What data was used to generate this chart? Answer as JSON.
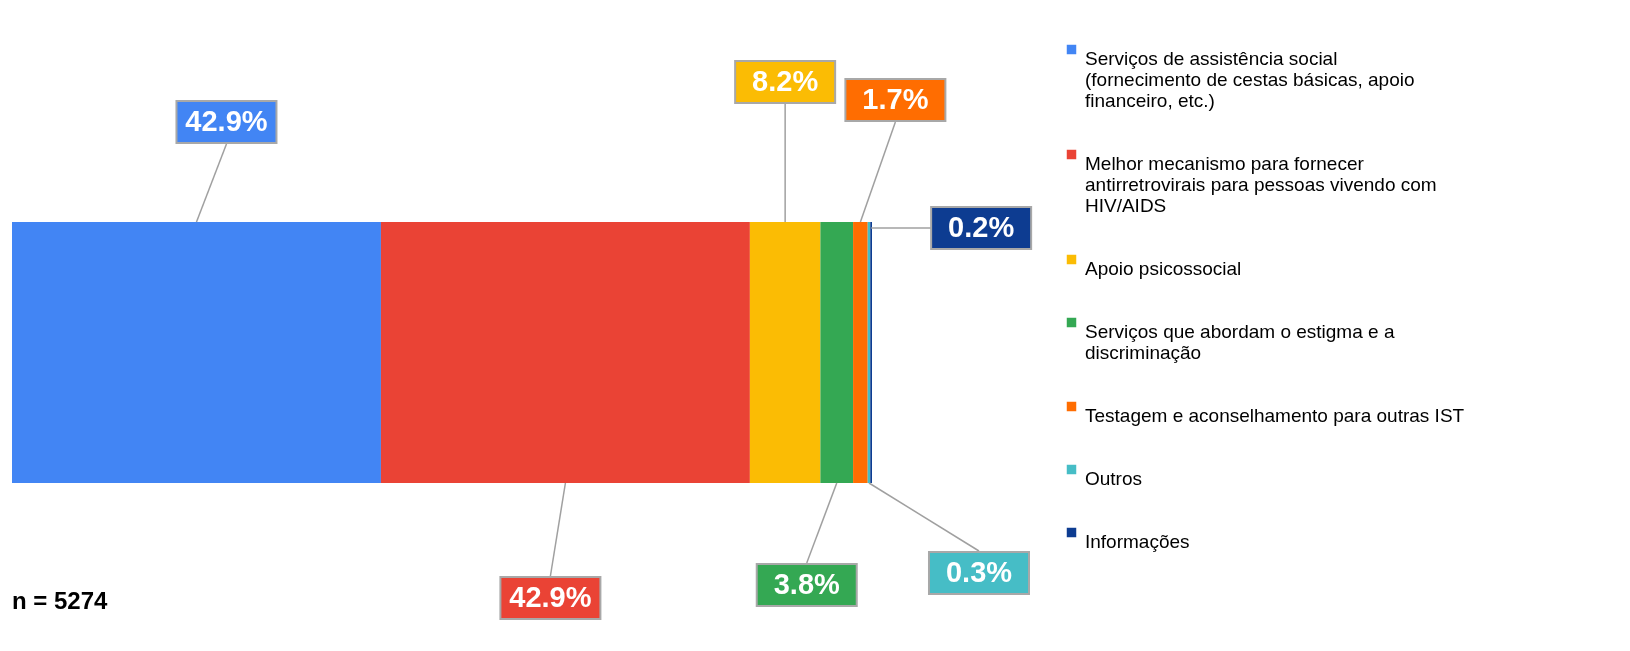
{
  "chart_data": {
    "type": "bar",
    "orientation": "horizontal",
    "stacked": true,
    "categories": [
      null
    ],
    "legend": "right",
    "series": [
      {
        "name": "Serviços de assistência social (fornecimento de cestas básicas, apoio financeiro, etc.)",
        "color": "#4285f4",
        "values": [
          42.9
        ],
        "value_labels": [
          "42.9%"
        ]
      },
      {
        "name": "Melhor mecanismo para fornecer antirretrovirais para pessoas vivendo com HIV/AIDS",
        "color": "#ea4335",
        "values": [
          42.9
        ],
        "value_labels": [
          "42.9%"
        ]
      },
      {
        "name": "Apoio psicossocial",
        "color": "#fbbc04",
        "values": [
          8.2
        ],
        "value_labels": [
          "8.2%"
        ]
      },
      {
        "name": "Serviços que abordam o estigma e a discriminação",
        "color": "#34a853",
        "values": [
          3.8
        ],
        "value_labels": [
          "3.8%"
        ]
      },
      {
        "name": "Testagem e aconselhamento para outras IST",
        "color": "#ff6d01",
        "values": [
          1.7
        ],
        "value_labels": [
          "1.7%"
        ]
      },
      {
        "name": "Outros",
        "color": "#46bdc6",
        "values": [
          0.3
        ],
        "value_labels": [
          "0.3%"
        ]
      },
      {
        "name": "Informações",
        "color": "#0d3c91",
        "values": [
          0.2
        ],
        "value_labels": [
          "0.2%"
        ]
      }
    ],
    "annotations": [
      "n = 5274"
    ]
  }
}
